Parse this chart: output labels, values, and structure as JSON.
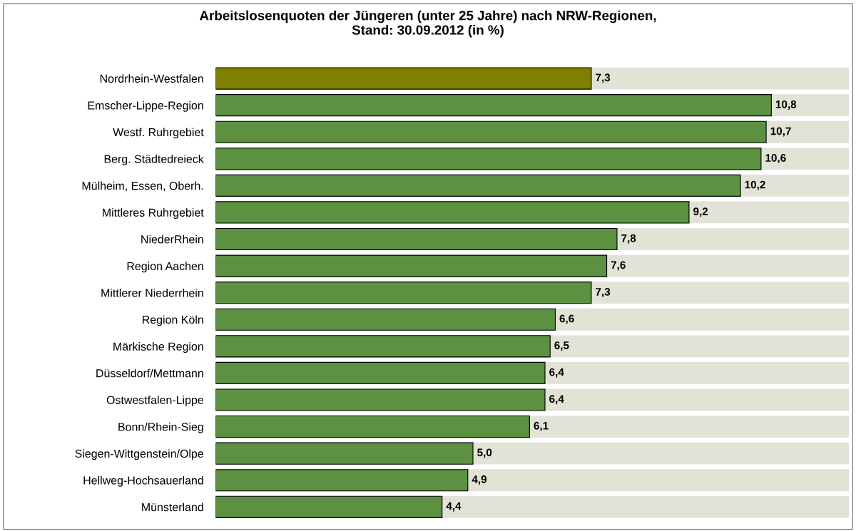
{
  "chart_data": {
    "type": "bar",
    "orientation": "horizontal",
    "title": "Arbeitslosenquoten der Jüngeren (unter 25 Jahre) nach NRW-Regionen,\nStand: 30.09.2012 (in %)",
    "categories": [
      "Nordrhein-Westfalen",
      "Emscher-Lippe-Region",
      "Westf. Ruhrgebiet",
      "Berg. Städtedreieck",
      "Mülheim, Essen, Oberh.",
      "Mittleres Ruhrgebiet",
      "NiederRhein",
      "Region Aachen",
      "Mittlerer Niederrhein",
      "Region Köln",
      "Märkische Region",
      "Düsseldorf/Mettmann",
      "Ostwestfalen-Lippe",
      "Bonn/Rhein-Sieg",
      "Siegen-Wittgenstein/Olpe",
      "Hellweg-Hochsauerland",
      "Münsterland"
    ],
    "values": [
      7.3,
      10.8,
      10.7,
      10.6,
      10.2,
      9.2,
      7.8,
      7.6,
      7.3,
      6.6,
      6.5,
      6.4,
      6.4,
      6.1,
      5.0,
      4.9,
      4.4
    ],
    "value_labels": [
      "7,3",
      "10,8",
      "10,7",
      "10,6",
      "10,2",
      "9,2",
      "7,8",
      "7,6",
      "7,3",
      "6,6",
      "6,5",
      "6,4",
      "6,4",
      "6,1",
      "5,0",
      "4,9",
      "4,4"
    ],
    "colors": [
      "#808000",
      "#5b9140",
      "#5b9140",
      "#5b9140",
      "#5b9140",
      "#5b9140",
      "#5b9140",
      "#5b9140",
      "#5b9140",
      "#5b9140",
      "#5b9140",
      "#5b9140",
      "#5b9140",
      "#5b9140",
      "#5b9140",
      "#5b9140",
      "#5b9140"
    ],
    "grid": false,
    "legend": false
  }
}
